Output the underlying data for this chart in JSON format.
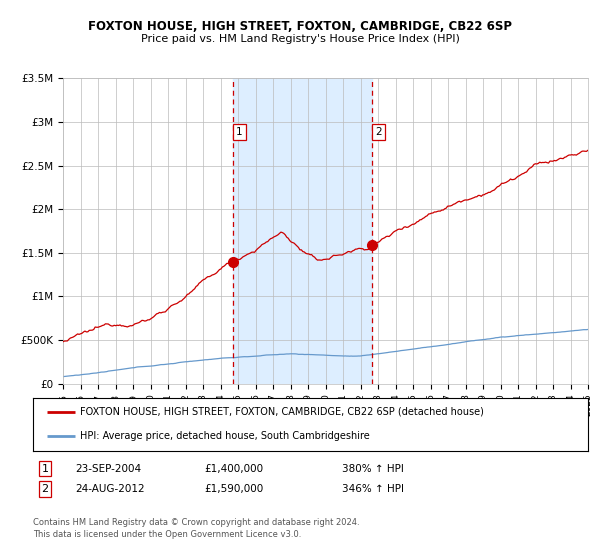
{
  "title": "FOXTON HOUSE, HIGH STREET, FOXTON, CAMBRIDGE, CB22 6SP",
  "subtitle": "Price paid vs. HM Land Registry's House Price Index (HPI)",
  "legend_line1": "FOXTON HOUSE, HIGH STREET, FOXTON, CAMBRIDGE, CB22 6SP (detached house)",
  "legend_line2": "HPI: Average price, detached house, South Cambridgeshire",
  "annotation1_date": "23-SEP-2004",
  "annotation1_price": "£1,400,000",
  "annotation1_hpi": "380% ↑ HPI",
  "annotation2_date": "24-AUG-2012",
  "annotation2_price": "£1,590,000",
  "annotation2_hpi": "346% ↑ HPI",
  "footer": "Contains HM Land Registry data © Crown copyright and database right 2024.\nThis data is licensed under the Open Government Licence v3.0.",
  "red_line_color": "#cc0000",
  "blue_line_color": "#6699cc",
  "shading_color": "#ddeeff",
  "grid_color": "#bbbbbb",
  "background_color": "#ffffff",
  "point1_x": 2004.72,
  "point1_y": 1400000,
  "point2_x": 2012.65,
  "point2_y": 1590000,
  "vline1_x": 2004.72,
  "vline2_x": 2012.65,
  "xmin": 1995,
  "xmax": 2025,
  "ymin": 0,
  "ymax": 3500000,
  "yticks": [
    0,
    500000,
    1000000,
    1500000,
    2000000,
    2500000,
    3000000,
    3500000
  ],
  "ytick_labels": [
    "£0",
    "£500K",
    "£1M",
    "£1.5M",
    "£2M",
    "£2.5M",
    "£3M",
    "£3.5M"
  ]
}
